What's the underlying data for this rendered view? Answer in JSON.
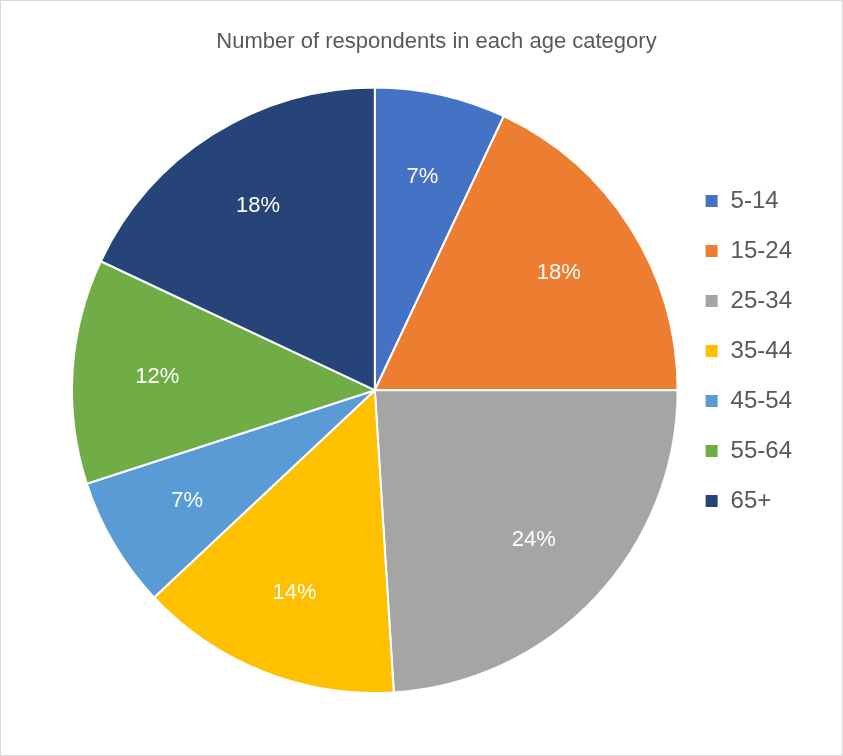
{
  "chart_data": {
    "type": "pie",
    "title": "Number of respondents in each age category",
    "categories": [
      "5-14",
      "15-24",
      "25-34",
      "35-44",
      "45-54",
      "55-64",
      "65+"
    ],
    "values": [
      7,
      18,
      24,
      14,
      7,
      12,
      18
    ],
    "value_labels": [
      "7%",
      "18%",
      "24%",
      "14%",
      "7%",
      "12%",
      "18%"
    ],
    "colors": [
      "#4472c4",
      "#ed7d31",
      "#a5a5a5",
      "#ffc000",
      "#5b9bd5",
      "#70ad47",
      "#264478"
    ],
    "data_labels": true,
    "legend": "right"
  }
}
